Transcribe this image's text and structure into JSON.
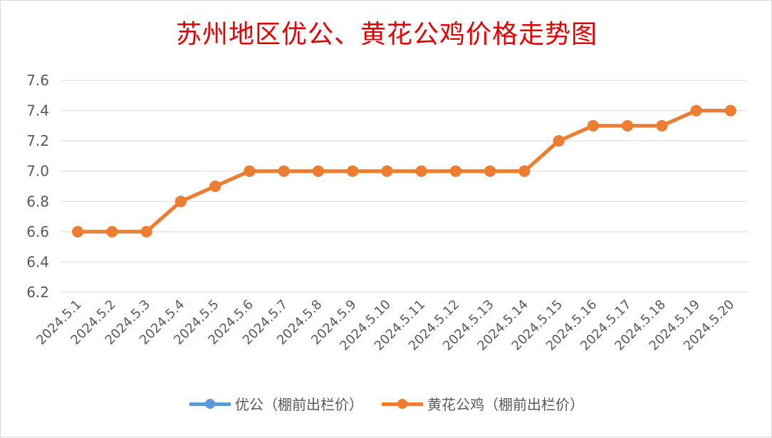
{
  "chart_data": {
    "type": "line",
    "title": "苏州地区优公、黄花公鸡价格走势图",
    "categories": [
      "2024.5.1",
      "2024.5.2",
      "2024.5.3",
      "2024.5.4",
      "2024.5.5",
      "2024.5.6",
      "2024.5.7",
      "2024.5.8",
      "2024.5.9",
      "2024.5.10",
      "2024.5.11",
      "2024.5.12",
      "2024.5.13",
      "2024.5.14",
      "2024.5.15",
      "2024.5.16",
      "2024.5.17",
      "2024.5.18",
      "2024.5.19",
      "2024.5.20"
    ],
    "yticks": [
      "6.2",
      "6.4",
      "6.6",
      "6.8",
      "7.0",
      "7.2",
      "7.4",
      "7.6"
    ],
    "ylim": [
      6.2,
      7.6
    ],
    "grid": true,
    "legend_position": "bottom",
    "series": [
      {
        "name": "优公（棚前出栏价）",
        "color": "#5b9bd5",
        "values": [
          6.6,
          6.6,
          6.6,
          6.8,
          6.9,
          7.0,
          7.0,
          7.0,
          7.0,
          7.0,
          7.0,
          7.0,
          7.0,
          7.0,
          7.2,
          7.3,
          7.3,
          7.3,
          7.4,
          7.4
        ]
      },
      {
        "name": "黄花公鸡（棚前出栏价）",
        "color": "#ed7d31",
        "values": [
          6.6,
          6.6,
          6.6,
          6.8,
          6.9,
          7.0,
          7.0,
          7.0,
          7.0,
          7.0,
          7.0,
          7.0,
          7.0,
          7.0,
          7.2,
          7.3,
          7.3,
          7.3,
          7.4,
          7.4
        ]
      }
    ]
  }
}
